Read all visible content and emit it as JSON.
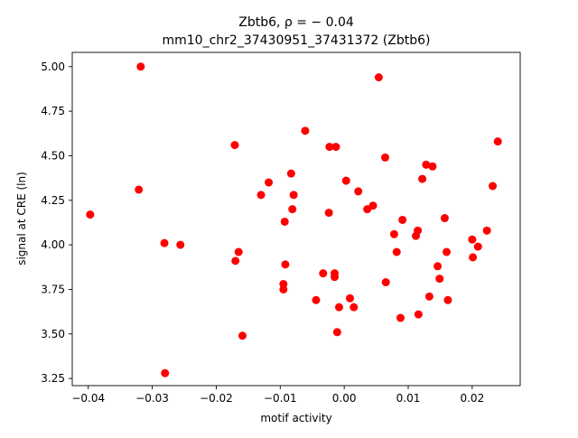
{
  "chart_data": {
    "type": "scatter",
    "title_line1": "Zbtb6, ρ = − 0.04",
    "title_line2": "mm10_chr2_37430951_37431372 (Zbtb6)",
    "xlabel": "motif activity",
    "ylabel": "signal at CRE (ln)",
    "xlim": [
      -0.0425,
      0.0275
    ],
    "ylim": [
      3.21,
      5.08
    ],
    "xticks": [
      -0.04,
      -0.03,
      -0.02,
      -0.01,
      0.0,
      0.01,
      0.02
    ],
    "xtick_labels": [
      "−0.04",
      "−0.03",
      "−0.02",
      "−0.01",
      "0.00",
      "0.01",
      "0.02"
    ],
    "yticks": [
      3.25,
      3.5,
      3.75,
      4.0,
      4.25,
      4.5,
      4.75,
      5.0
    ],
    "ytick_labels": [
      "3.25",
      "3.50",
      "3.75",
      "4.00",
      "4.25",
      "4.50",
      "4.75",
      "5.00"
    ],
    "grid": false,
    "marker_color": "#ff0000",
    "points": [
      {
        "x": -0.0397,
        "y": 4.17
      },
      {
        "x": -0.0318,
        "y": 5.0
      },
      {
        "x": -0.0321,
        "y": 4.31
      },
      {
        "x": -0.0281,
        "y": 4.01
      },
      {
        "x": -0.0256,
        "y": 4.0
      },
      {
        "x": -0.028,
        "y": 3.28
      },
      {
        "x": -0.0171,
        "y": 4.56
      },
      {
        "x": -0.0165,
        "y": 3.96
      },
      {
        "x": -0.017,
        "y": 3.91
      },
      {
        "x": -0.0159,
        "y": 3.49
      },
      {
        "x": -0.013,
        "y": 4.28
      },
      {
        "x": -0.0118,
        "y": 4.35
      },
      {
        "x": -0.0095,
        "y": 3.78
      },
      {
        "x": -0.0095,
        "y": 3.75
      },
      {
        "x": -0.0092,
        "y": 3.89
      },
      {
        "x": -0.0093,
        "y": 4.13
      },
      {
        "x": -0.0083,
        "y": 4.4
      },
      {
        "x": -0.0081,
        "y": 4.2
      },
      {
        "x": -0.0079,
        "y": 4.28
      },
      {
        "x": -0.0061,
        "y": 4.64
      },
      {
        "x": -0.0044,
        "y": 3.69
      },
      {
        "x": -0.0033,
        "y": 3.84
      },
      {
        "x": -0.0024,
        "y": 4.18
      },
      {
        "x": -0.0023,
        "y": 4.55
      },
      {
        "x": -0.0013,
        "y": 4.55
      },
      {
        "x": -0.0015,
        "y": 3.84
      },
      {
        "x": -0.0015,
        "y": 3.82
      },
      {
        "x": -0.0011,
        "y": 3.51
      },
      {
        "x": -0.0008,
        "y": 3.65
      },
      {
        "x": 0.0003,
        "y": 4.36
      },
      {
        "x": 0.0009,
        "y": 3.7
      },
      {
        "x": 0.0015,
        "y": 3.65
      },
      {
        "x": 0.0022,
        "y": 4.3
      },
      {
        "x": 0.0036,
        "y": 4.2
      },
      {
        "x": 0.0045,
        "y": 4.22
      },
      {
        "x": 0.0054,
        "y": 4.94
      },
      {
        "x": 0.0064,
        "y": 4.49
      },
      {
        "x": 0.0065,
        "y": 3.79
      },
      {
        "x": 0.0078,
        "y": 4.06
      },
      {
        "x": 0.0082,
        "y": 3.96
      },
      {
        "x": 0.0088,
        "y": 3.59
      },
      {
        "x": 0.0091,
        "y": 4.14
      },
      {
        "x": 0.0112,
        "y": 4.05
      },
      {
        "x": 0.0115,
        "y": 4.08
      },
      {
        "x": 0.0116,
        "y": 3.61
      },
      {
        "x": 0.0122,
        "y": 4.37
      },
      {
        "x": 0.0128,
        "y": 4.45
      },
      {
        "x": 0.0133,
        "y": 3.71
      },
      {
        "x": 0.0138,
        "y": 4.44
      },
      {
        "x": 0.0146,
        "y": 3.88
      },
      {
        "x": 0.0149,
        "y": 3.81
      },
      {
        "x": 0.0157,
        "y": 4.15
      },
      {
        "x": 0.016,
        "y": 3.96
      },
      {
        "x": 0.0162,
        "y": 3.69
      },
      {
        "x": 0.02,
        "y": 4.03
      },
      {
        "x": 0.0201,
        "y": 3.93
      },
      {
        "x": 0.0209,
        "y": 3.99
      },
      {
        "x": 0.0223,
        "y": 4.08
      },
      {
        "x": 0.0232,
        "y": 4.33
      },
      {
        "x": 0.024,
        "y": 4.58
      }
    ]
  }
}
